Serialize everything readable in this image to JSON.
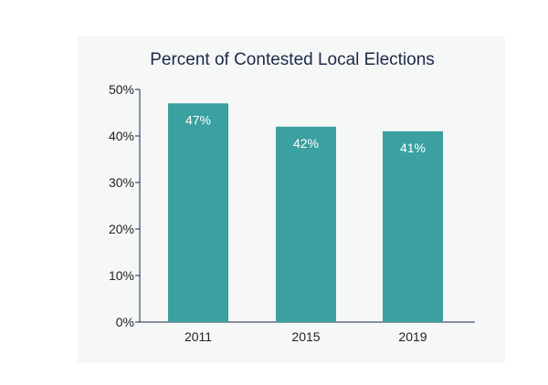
{
  "chart_data": {
    "type": "bar",
    "title": "Percent of Contested Local Elections",
    "xlabel": "",
    "ylabel": "",
    "categories": [
      "2011",
      "2015",
      "2019"
    ],
    "values": [
      47,
      42,
      41
    ],
    "value_labels": [
      "47%",
      "42%",
      "41%"
    ],
    "yticks": [
      0,
      10,
      20,
      30,
      40,
      50
    ],
    "ytick_labels": [
      "0%",
      "10%",
      "20%",
      "30%",
      "40%",
      "50%"
    ],
    "ylim": [
      0,
      50
    ],
    "grid": false,
    "legend": "none",
    "bar_color": "#3aa0a0",
    "axis_color": "#1b2a49",
    "background_color": "#f6f7f7"
  }
}
